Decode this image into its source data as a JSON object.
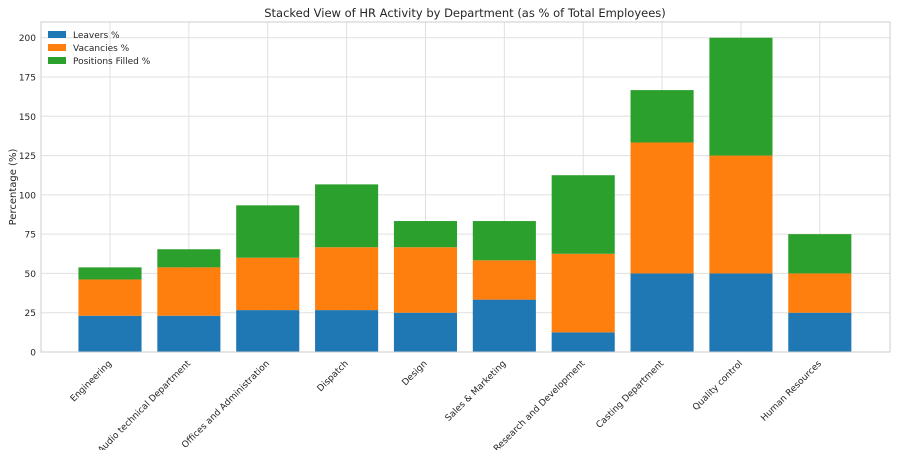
{
  "chart_data": {
    "type": "bar",
    "stacked": true,
    "title": "Stacked View of HR Activity by Department (as % of Total Employees)",
    "xlabel": "",
    "ylabel": "Percentage (%)",
    "ylim": [
      0,
      210
    ],
    "yticks": [
      0,
      25,
      50,
      75,
      100,
      125,
      150,
      175,
      200
    ],
    "grid": true,
    "legend_position": "top-left",
    "categories": [
      "Engineering",
      "Audio technical Department",
      "Offices and Administration",
      "Dispatch",
      "Design",
      "Sales & Marketing",
      "Research and Development",
      "Casting Department",
      "Quality control",
      "Human Resources"
    ],
    "series": [
      {
        "name": "Leavers %",
        "color": "#1f77b4",
        "values": [
          23.08,
          23.08,
          26.67,
          26.67,
          25.0,
          33.33,
          12.5,
          50.0,
          50.0,
          25.0
        ]
      },
      {
        "name": "Vacancies %",
        "color": "#ff7f0e",
        "values": [
          23.08,
          30.77,
          33.33,
          40.0,
          41.67,
          25.0,
          50.0,
          83.33,
          75.0,
          25.0
        ]
      },
      {
        "name": "Positions Filled %",
        "color": "#2ca02c",
        "values": [
          7.69,
          11.54,
          33.33,
          40.0,
          16.67,
          25.0,
          50.0,
          33.33,
          75.0,
          25.0
        ]
      }
    ]
  }
}
